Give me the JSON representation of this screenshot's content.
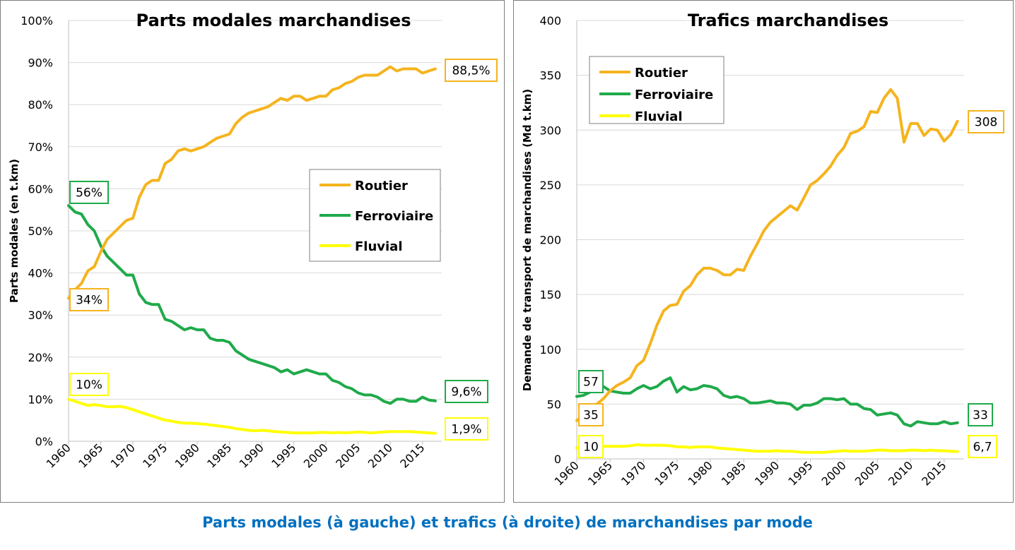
{
  "caption": "Parts modales (à gauche) et trafics (à droite) de marchandises par mode",
  "chart_data": [
    {
      "type": "line",
      "title": "Parts modales marchandises",
      "ylabel": "Parts modales (en t.km)",
      "xlabel": "",
      "x_ticks": [
        "1960",
        "1965",
        "1970",
        "1975",
        "1980",
        "1985",
        "1990",
        "1995",
        "2000",
        "2005",
        "2010",
        "2015"
      ],
      "y_ticks": [
        "0%",
        "10%",
        "20%",
        "30%",
        "40%",
        "50%",
        "60%",
        "70%",
        "80%",
        "90%",
        "100%"
      ],
      "ylim": [
        0,
        100
      ],
      "xlim": [
        1960,
        2018
      ],
      "grid": "horizontal",
      "legend_position": "center-right",
      "x": [
        1960,
        1961,
        1962,
        1963,
        1964,
        1965,
        1966,
        1967,
        1968,
        1969,
        1970,
        1971,
        1972,
        1973,
        1974,
        1975,
        1976,
        1977,
        1978,
        1979,
        1980,
        1981,
        1982,
        1983,
        1984,
        1985,
        1986,
        1987,
        1988,
        1989,
        1990,
        1991,
        1992,
        1993,
        1994,
        1995,
        1996,
        1997,
        1998,
        1999,
        2000,
        2001,
        2002,
        2003,
        2004,
        2005,
        2006,
        2007,
        2008,
        2009,
        2010,
        2011,
        2012,
        2013,
        2014,
        2015,
        2016,
        2017
      ],
      "series": [
        {
          "name": "Routier",
          "color": "#f5b41e",
          "values": [
            34,
            36,
            37.5,
            40.5,
            41.5,
            45,
            48,
            49.5,
            51,
            52.5,
            53,
            58,
            61,
            62,
            62,
            66,
            67,
            69,
            69.5,
            69,
            69.5,
            70,
            71,
            72,
            72.5,
            73,
            75.5,
            77,
            78,
            78.5,
            79,
            79.5,
            80.5,
            81.5,
            81,
            82,
            82,
            81,
            81.5,
            82,
            82,
            83.5,
            84,
            85,
            85.5,
            86.5,
            87,
            87,
            87,
            88,
            89,
            88,
            88.5,
            88.5,
            88.5,
            87.5,
            88,
            88.5
          ]
        },
        {
          "name": "Ferroviaire",
          "color": "#1faa4a",
          "values": [
            56,
            54.5,
            54,
            51.5,
            50,
            46.5,
            44,
            42.5,
            41,
            39.5,
            39.5,
            35,
            33,
            32.5,
            32.5,
            29,
            28.5,
            27.5,
            26.5,
            27,
            26.5,
            26.5,
            24.5,
            24,
            24,
            23.5,
            21.5,
            20.5,
            19.5,
            19,
            18.5,
            18,
            17.5,
            16.5,
            17,
            16,
            16.5,
            17,
            16.5,
            16,
            16,
            14.5,
            14,
            13,
            12.5,
            11.5,
            11,
            11,
            10.5,
            9.5,
            9,
            10,
            10,
            9.5,
            9.5,
            10.5,
            9.8,
            9.6
          ]
        },
        {
          "name": "Fluvial",
          "color": "#ffff00",
          "values": [
            10,
            9.5,
            9,
            8.5,
            8.7,
            8.5,
            8.2,
            8.2,
            8.3,
            8,
            7.5,
            7,
            6.5,
            6,
            5.5,
            5,
            4.8,
            4.5,
            4.3,
            4.3,
            4.2,
            4.1,
            3.9,
            3.7,
            3.5,
            3.3,
            3,
            2.8,
            2.6,
            2.5,
            2.6,
            2.5,
            2.3,
            2.2,
            2.1,
            2,
            2,
            2,
            2,
            2.1,
            2.1,
            2,
            2.1,
            2,
            2.1,
            2.2,
            2.1,
            2,
            2.1,
            2.2,
            2.3,
            2.3,
            2.3,
            2.3,
            2.2,
            2.1,
            2,
            1.9
          ]
        }
      ],
      "annotations": [
        {
          "label": "56%",
          "series": "Ferroviaire"
        },
        {
          "label": "34%",
          "series": "Routier"
        },
        {
          "label": "10%",
          "series": "Fluvial"
        },
        {
          "label": "88,5%",
          "series": "Routier"
        },
        {
          "label": "9,6%",
          "series": "Ferroviaire"
        },
        {
          "label": "1,9%",
          "series": "Fluvial"
        }
      ]
    },
    {
      "type": "line",
      "title": "Trafics marchandises",
      "ylabel": "Demande de transport de marchandises (Md t.km)",
      "xlabel": "",
      "x_ticks": [
        "1960",
        "1965",
        "1970",
        "1975",
        "1980",
        "1985",
        "1990",
        "1995",
        "2000",
        "2005",
        "2010",
        "2015"
      ],
      "y_ticks": [
        "0",
        "50",
        "100",
        "150",
        "200",
        "250",
        "300",
        "350",
        "400"
      ],
      "ylim": [
        0,
        400
      ],
      "xlim": [
        1960,
        2018
      ],
      "grid": "horizontal",
      "legend_position": "top-left",
      "x": [
        1960,
        1961,
        1962,
        1963,
        1964,
        1965,
        1966,
        1967,
        1968,
        1969,
        1970,
        1971,
        1972,
        1973,
        1974,
        1975,
        1976,
        1977,
        1978,
        1979,
        1980,
        1981,
        1982,
        1983,
        1984,
        1985,
        1986,
        1987,
        1988,
        1989,
        1990,
        1991,
        1992,
        1993,
        1994,
        1995,
        1996,
        1997,
        1998,
        1999,
        2000,
        2001,
        2002,
        2003,
        2004,
        2005,
        2006,
        2007,
        2008,
        2009,
        2010,
        2011,
        2012,
        2013,
        2014,
        2015,
        2016,
        2017
      ],
      "series": [
        {
          "name": "Routier",
          "color": "#f5b41e",
          "values": [
            35,
            40,
            45,
            50,
            55,
            62,
            67,
            70,
            74,
            85,
            90,
            105,
            122,
            135,
            140,
            141,
            153,
            158,
            168,
            174,
            174,
            172,
            168,
            168,
            173,
            172,
            185,
            196,
            208,
            216,
            221,
            226,
            231,
            227,
            238,
            250,
            254,
            260,
            267,
            277,
            284,
            297,
            299,
            303,
            317,
            316,
            329,
            337,
            329,
            289,
            306,
            306,
            295,
            301,
            300,
            290,
            296,
            308
          ]
        },
        {
          "name": "Ferroviaire",
          "color": "#1faa4a",
          "values": [
            57,
            58,
            61,
            63,
            66,
            62,
            61,
            60,
            60,
            64,
            67,
            64,
            66,
            71,
            74,
            61,
            66,
            63,
            64,
            67,
            66,
            64,
            58,
            56,
            57,
            55,
            51,
            51,
            52,
            53,
            51,
            51,
            50,
            45,
            49,
            49,
            51,
            55,
            55,
            54,
            55,
            50,
            50,
            46,
            45,
            40,
            41,
            42,
            40,
            32,
            30,
            34,
            33,
            32,
            32,
            34,
            32,
            33
          ]
        },
        {
          "name": "Fluvial",
          "color": "#ffff00",
          "values": [
            10,
            10.5,
            11,
            11,
            11.5,
            11.5,
            11.5,
            11.5,
            12,
            13,
            12.5,
            12.5,
            12.5,
            12.5,
            12,
            11,
            11,
            10.5,
            11,
            11,
            11,
            10,
            9.5,
            9,
            8.5,
            8,
            7.5,
            7,
            7,
            7,
            7.5,
            7,
            7,
            6.5,
            6,
            6,
            6,
            6,
            6.5,
            7,
            7.5,
            7,
            7,
            7,
            7.5,
            8,
            8,
            7.5,
            7.5,
            7.5,
            8,
            8,
            7.5,
            8,
            7.5,
            7.5,
            7,
            6.7
          ]
        }
      ],
      "annotations": [
        {
          "label": "57",
          "series": "Ferroviaire"
        },
        {
          "label": "35",
          "series": "Routier"
        },
        {
          "label": "10",
          "series": "Fluvial"
        },
        {
          "label": "308",
          "series": "Routier"
        },
        {
          "label": "33",
          "series": "Ferroviaire"
        },
        {
          "label": "6,7",
          "series": "Fluvial"
        }
      ]
    }
  ]
}
